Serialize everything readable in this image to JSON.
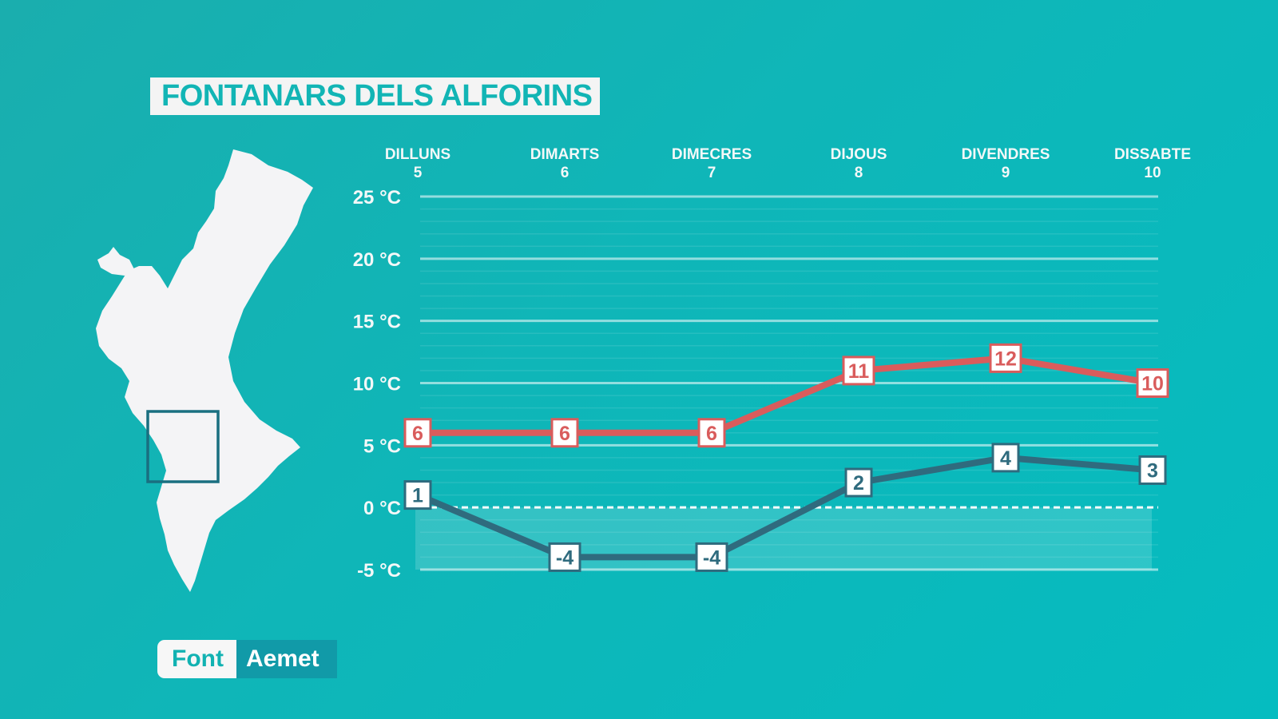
{
  "header": {
    "title": "FONTANARS DELS ALFORINS"
  },
  "source": {
    "label": "Font",
    "value": "Aemet"
  },
  "colors": {
    "max_line": "#d95c5c",
    "min_line": "#2f6b7e",
    "background": "#0fb6b8",
    "map_fill": "#f4f4f6",
    "map_frame": "#1a6f80"
  },
  "map": {
    "icon": "valencia-region-map-icon"
  },
  "chart_data": {
    "type": "line",
    "categories": [
      {
        "day": "DILLUNS",
        "date": "5"
      },
      {
        "day": "DIMARTS",
        "date": "6"
      },
      {
        "day": "DIMECRES",
        "date": "7"
      },
      {
        "day": "DIJOUS",
        "date": "8"
      },
      {
        "day": "DIVENDRES",
        "date": "9"
      },
      {
        "day": "DISSABTE",
        "date": "10"
      }
    ],
    "y_ticks": [
      {
        "value": 25,
        "label": "25 °C"
      },
      {
        "value": 20,
        "label": "20 °C"
      },
      {
        "value": 15,
        "label": "15 °C"
      },
      {
        "value": 10,
        "label": "10 °C"
      },
      {
        "value": 5,
        "label": "5 °C"
      },
      {
        "value": 0,
        "label": "0 °C"
      },
      {
        "value": -5,
        "label": "-5 °C"
      }
    ],
    "ylim": [
      -5,
      25
    ],
    "grid": true,
    "series": [
      {
        "key": "max",
        "values": [
          6,
          6,
          6,
          11,
          12,
          10
        ]
      },
      {
        "key": "min",
        "values": [
          1,
          -4,
          -4,
          2,
          4,
          3
        ]
      }
    ]
  }
}
